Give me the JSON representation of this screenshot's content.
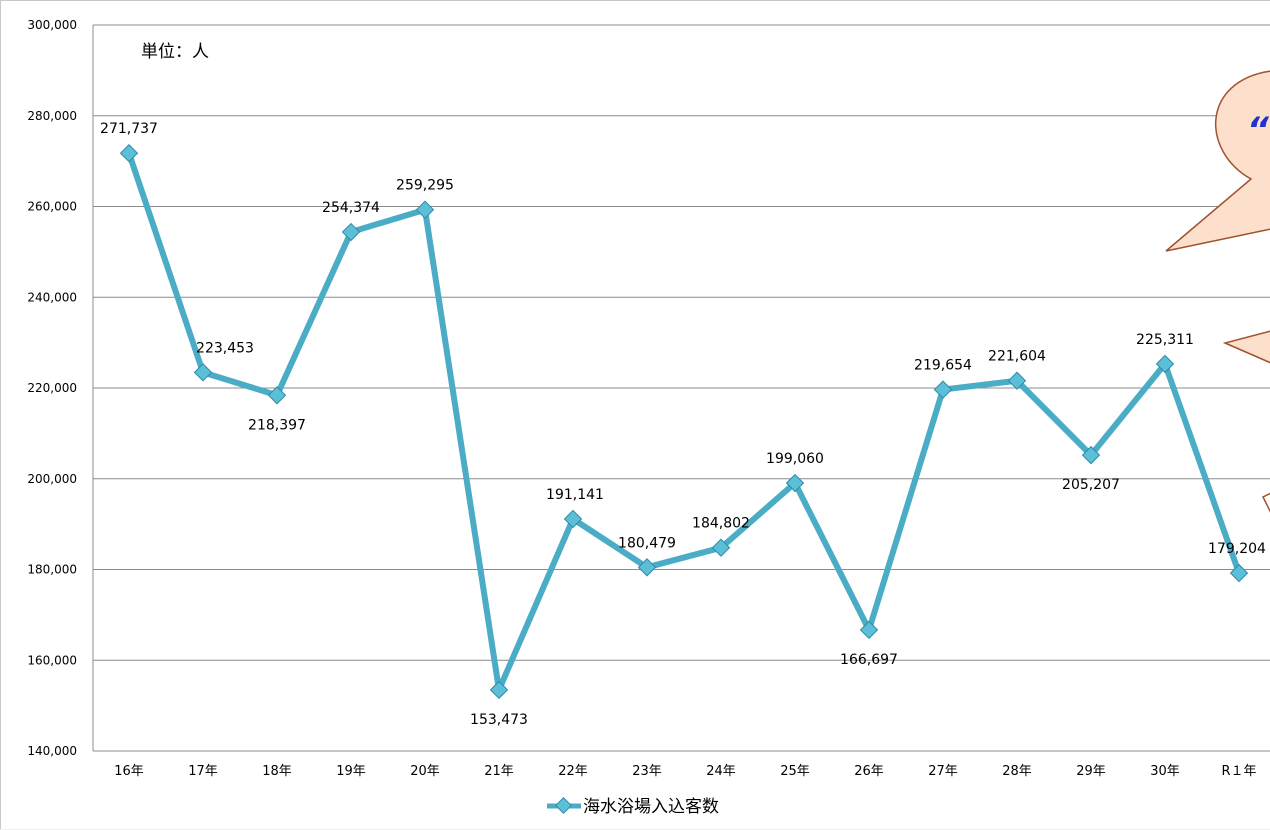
{
  "chart_data": {
    "type": "line",
    "title": "",
    "unit_label": "単位：人",
    "xlabel": "",
    "ylabel": "",
    "categories": [
      "16年",
      "17年",
      "18年",
      "19年",
      "20年",
      "21年",
      "22年",
      "23年",
      "24年",
      "25年",
      "26年",
      "27年",
      "28年",
      "29年",
      "30年",
      "R１年"
    ],
    "series": [
      {
        "name": "海水浴場入込客数",
        "values": [
          271737,
          223453,
          218397,
          254374,
          259295,
          153473,
          191141,
          180479,
          184802,
          199060,
          166697,
          219654,
          221604,
          205207,
          225311,
          179204
        ],
        "labels": [
          "271,737",
          "223,453",
          "218,397",
          "254,374",
          "259,295",
          "153,473",
          "191,141",
          "180,479",
          "184,802",
          "199,060",
          "166,697",
          "219,654",
          "221,604",
          "205,207",
          "225,311",
          "179,204"
        ],
        "color": "#4bacc6"
      }
    ],
    "ylim": [
      140000,
      300000
    ],
    "yticks": [
      "140,000",
      "160,000",
      "180,000",
      "200,000",
      "220,000",
      "240,000",
      "260,000",
      "280,000",
      "300,000"
    ],
    "grid": true,
    "legend": "bottom"
  },
  "colors": {
    "line": "#4bacc6",
    "marker": "#5bbfd8",
    "gridline": "#8c8c8c",
    "callout_fill": "#fde0cc",
    "callout_stroke": "#a0522d",
    "callout_text": "#2233cc"
  },
  "callout_text": "“"
}
